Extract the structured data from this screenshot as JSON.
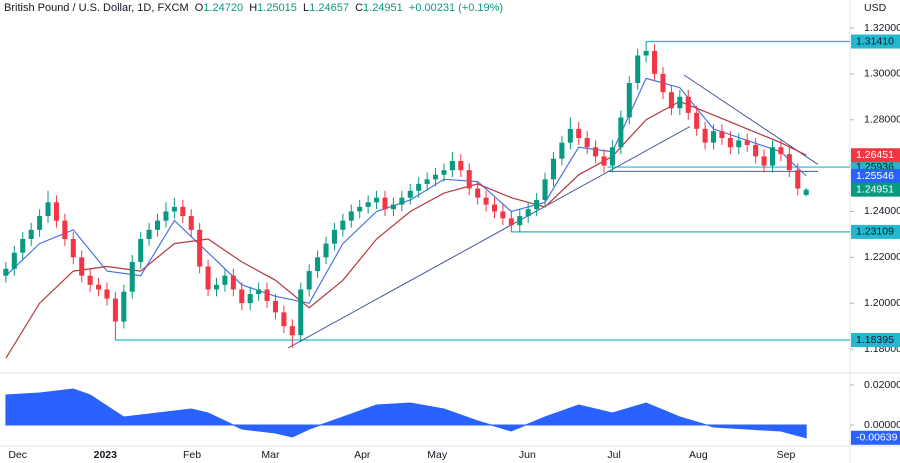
{
  "header": {
    "symbol": "British Pound / U.S. Dollar, 1D, FXCM",
    "o": "O",
    "open": "1.24720",
    "h": "H",
    "high": "1.25015",
    "l": "L",
    "low": "1.24657",
    "c": "C",
    "close": "1.24951",
    "change": "+0.00231 (+0.19%)"
  },
  "chart_data": [
    {
      "type": "candlestick",
      "currency": "USD",
      "xlim": [
        -0.7,
        100.2
      ],
      "ylim": [
        1.17,
        1.3322
      ],
      "xticks": [
        {
          "value": 1.4,
          "label": "Dec"
        },
        {
          "value": 11.8,
          "label": "2023"
        },
        {
          "value": 22.1,
          "label": "Feb"
        },
        {
          "value": 31.4,
          "label": "Mar"
        },
        {
          "value": 42.3,
          "label": "Apr"
        },
        {
          "value": 51.2,
          "label": "May"
        },
        {
          "value": 61.9,
          "label": "Jun"
        },
        {
          "value": 72.2,
          "label": "Jul"
        },
        {
          "value": 82.2,
          "label": "Aug"
        },
        {
          "value": 92.6,
          "label": "Sep"
        }
      ],
      "yticks": [
        {
          "value": 1.32,
          "label": "1.32000"
        },
        {
          "value": 1.3,
          "label": "1.30000"
        },
        {
          "value": 1.28,
          "label": "1.28000"
        },
        {
          "value": 1.26,
          "label": "1.26000"
        },
        {
          "value": 1.24,
          "label": "1.24000"
        },
        {
          "value": 1.22,
          "label": "1.22000"
        },
        {
          "value": 1.2,
          "label": "1.20000"
        },
        {
          "value": 1.18,
          "label": "1.18000"
        }
      ],
      "grid": false,
      "up_color": "#089981",
      "down_color": "#f23645",
      "open": [
        1.212,
        1.215,
        1.222,
        1.228,
        1.232,
        1.238,
        1.244,
        1.236,
        1.228,
        1.22,
        1.212,
        1.208,
        1.206,
        1.202,
        1.192,
        1.205,
        1.218,
        1.228,
        1.232,
        1.236,
        1.24,
        1.242,
        1.238,
        1.232,
        1.216,
        1.206,
        1.208,
        1.212,
        1.206,
        1.2,
        1.204,
        1.206,
        1.201,
        1.196,
        1.19,
        1.186,
        1.206,
        1.214,
        1.22,
        1.226,
        1.232,
        1.236,
        1.24,
        1.242,
        1.244,
        1.246,
        1.241,
        1.243,
        1.246,
        1.249,
        1.252,
        1.254,
        1.256,
        1.258,
        1.262,
        1.258,
        1.25,
        1.246,
        1.243,
        1.24,
        1.237,
        1.234,
        1.238,
        1.241,
        1.245,
        1.254,
        1.263,
        1.27,
        1.276,
        1.272,
        1.268,
        1.264,
        1.26,
        1.268,
        1.281,
        1.296,
        1.308,
        1.31,
        1.3,
        1.292,
        1.285,
        1.29,
        1.283,
        1.276,
        1.27,
        1.275,
        1.272,
        1.268,
        1.271,
        1.269,
        1.264,
        1.26,
        1.268,
        1.265,
        1.258,
        1.2472
      ],
      "high": [
        1.218,
        1.225,
        1.231,
        1.235,
        1.241,
        1.249,
        1.247,
        1.239,
        1.231,
        1.223,
        1.215,
        1.211,
        1.209,
        1.205,
        1.208,
        1.221,
        1.231,
        1.235,
        1.239,
        1.244,
        1.246,
        1.245,
        1.241,
        1.235,
        1.219,
        1.211,
        1.215,
        1.215,
        1.209,
        1.207,
        1.209,
        1.209,
        1.204,
        1.199,
        1.193,
        1.209,
        1.217,
        1.223,
        1.229,
        1.235,
        1.239,
        1.243,
        1.245,
        1.247,
        1.249,
        1.249,
        1.246,
        1.249,
        1.252,
        1.255,
        1.257,
        1.259,
        1.261,
        1.266,
        1.265,
        1.261,
        1.253,
        1.249,
        1.246,
        1.243,
        1.24,
        1.241,
        1.244,
        1.248,
        1.257,
        1.266,
        1.273,
        1.281,
        1.279,
        1.275,
        1.271,
        1.267,
        1.271,
        1.284,
        1.299,
        1.311,
        1.3141,
        1.313,
        1.303,
        1.295,
        1.293,
        1.293,
        1.286,
        1.279,
        1.278,
        1.278,
        1.275,
        1.274,
        1.274,
        1.272,
        1.267,
        1.271,
        1.271,
        1.268,
        1.261,
        1.25015
      ],
      "low": [
        1.209,
        1.212,
        1.219,
        1.225,
        1.229,
        1.235,
        1.233,
        1.225,
        1.217,
        1.209,
        1.205,
        1.203,
        1.199,
        1.184,
        1.189,
        1.202,
        1.215,
        1.225,
        1.229,
        1.233,
        1.237,
        1.235,
        1.229,
        1.213,
        1.203,
        1.203,
        1.205,
        1.203,
        1.197,
        1.197,
        1.201,
        1.198,
        1.193,
        1.187,
        1.1805,
        1.183,
        1.203,
        1.211,
        1.217,
        1.223,
        1.229,
        1.233,
        1.237,
        1.239,
        1.241,
        1.238,
        1.238,
        1.24,
        1.243,
        1.246,
        1.249,
        1.251,
        1.253,
        1.255,
        1.255,
        1.247,
        1.243,
        1.24,
        1.237,
        1.234,
        1.231,
        1.231,
        1.235,
        1.238,
        1.242,
        1.251,
        1.26,
        1.267,
        1.269,
        1.265,
        1.261,
        1.257,
        1.257,
        1.265,
        1.278,
        1.293,
        1.305,
        1.297,
        1.289,
        1.282,
        1.282,
        1.28,
        1.273,
        1.267,
        1.267,
        1.269,
        1.265,
        1.265,
        1.266,
        1.261,
        1.257,
        1.257,
        1.262,
        1.255,
        1.247,
        1.24657
      ],
      "close": [
        1.215,
        1.222,
        1.228,
        1.232,
        1.238,
        1.244,
        1.236,
        1.228,
        1.22,
        1.212,
        1.208,
        1.206,
        1.202,
        1.192,
        1.205,
        1.218,
        1.228,
        1.232,
        1.236,
        1.24,
        1.242,
        1.238,
        1.232,
        1.216,
        1.206,
        1.208,
        1.212,
        1.206,
        1.2,
        1.204,
        1.206,
        1.201,
        1.196,
        1.19,
        1.186,
        1.206,
        1.214,
        1.22,
        1.226,
        1.232,
        1.236,
        1.24,
        1.242,
        1.244,
        1.246,
        1.241,
        1.243,
        1.246,
        1.249,
        1.252,
        1.254,
        1.256,
        1.258,
        1.262,
        1.258,
        1.25,
        1.246,
        1.243,
        1.24,
        1.237,
        1.234,
        1.238,
        1.241,
        1.245,
        1.254,
        1.263,
        1.27,
        1.276,
        1.272,
        1.268,
        1.264,
        1.26,
        1.268,
        1.281,
        1.296,
        1.308,
        1.31,
        1.3,
        1.292,
        1.285,
        1.29,
        1.283,
        1.276,
        1.27,
        1.275,
        1.272,
        1.268,
        1.271,
        1.269,
        1.264,
        1.26,
        1.268,
        1.265,
        1.258,
        1.25,
        1.24951
      ],
      "close_label": "1.24951",
      "series": [
        {
          "color": "#4a72e8",
          "x": [
            0,
            4,
            8,
            12,
            16,
            20,
            24,
            28,
            32,
            36,
            40,
            44,
            48,
            52,
            56,
            60,
            64,
            68,
            72,
            76,
            80,
            84,
            88,
            92,
            95
          ],
          "values": [
            1.212,
            1.226,
            1.232,
            1.214,
            1.212,
            1.236,
            1.222,
            1.208,
            1.203,
            1.2,
            1.226,
            1.24,
            1.245,
            1.254,
            1.253,
            1.24,
            1.244,
            1.268,
            1.266,
            1.298,
            1.294,
            1.276,
            1.271,
            1.266,
            1.25546
          ],
          "value_label": "1.25546",
          "label_color": "#2962ff"
        },
        {
          "color": "#b5393f",
          "x": [
            0,
            4,
            8,
            12,
            16,
            20,
            24,
            28,
            32,
            36,
            40,
            44,
            48,
            52,
            56,
            60,
            64,
            68,
            72,
            76,
            80,
            84,
            88,
            92,
            95
          ],
          "values": [
            1.176,
            1.2,
            1.214,
            1.216,
            1.214,
            1.226,
            1.228,
            1.218,
            1.21,
            1.198,
            1.21,
            1.228,
            1.24,
            1.248,
            1.252,
            1.246,
            1.242,
            1.256,
            1.264,
            1.28,
            1.288,
            1.282,
            1.276,
            1.27,
            1.26451
          ],
          "value_label": "1.26451",
          "label_color": "#f23645"
        }
      ],
      "levels": [
        {
          "value": 1.3141,
          "label": "1.31410",
          "x_start": 76
        },
        {
          "value": 1.25936,
          "label": "1.25936",
          "x_start": 71.4
        },
        {
          "value": 1.23109,
          "label": "1.23109",
          "x_start": 60
        },
        {
          "value": 1.18395,
          "label": "1.18395",
          "x_start": 13
        }
      ],
      "level_color": "#22b8cf",
      "trendlines": [
        {
          "x": [
            33.5,
            81.2
          ],
          "values": [
            1.1805,
            1.277
          ]
        },
        {
          "x": [
            80.5,
            96.4
          ],
          "values": [
            1.2995,
            1.2605
          ]
        },
        {
          "x": [
            71.4,
            96.4
          ],
          "values": [
            1.2575,
            1.2575
          ]
        }
      ],
      "trend_color": "#4a5a9a"
    },
    {
      "type": "area",
      "xlim": [
        -0.7,
        100.2
      ],
      "ylim": [
        -0.01,
        0.0255
      ],
      "yticks": [
        {
          "value": 0.02,
          "label": "0.02000"
        },
        {
          "value": 0,
          "label": "0.00000"
        }
      ],
      "color": "#2962ff",
      "x": [
        0,
        4,
        8,
        10,
        14,
        18,
        22,
        24,
        28,
        32,
        34,
        36,
        40,
        44,
        48,
        52,
        56,
        60,
        64,
        68,
        72,
        76,
        80,
        84,
        88,
        92,
        95
      ],
      "values": [
        0.015,
        0.016,
        0.018,
        0.015,
        0.004,
        0.006,
        0.008,
        0.006,
        -0.002,
        -0.004,
        -0.006,
        -0.002,
        0.004,
        0.01,
        0.011,
        0.008,
        0.002,
        -0.003,
        0.004,
        0.01,
        0.006,
        0.011,
        0.004,
        -0.001,
        -0.002,
        -0.003,
        -0.00639
      ],
      "value_label": "-0.00639"
    }
  ]
}
